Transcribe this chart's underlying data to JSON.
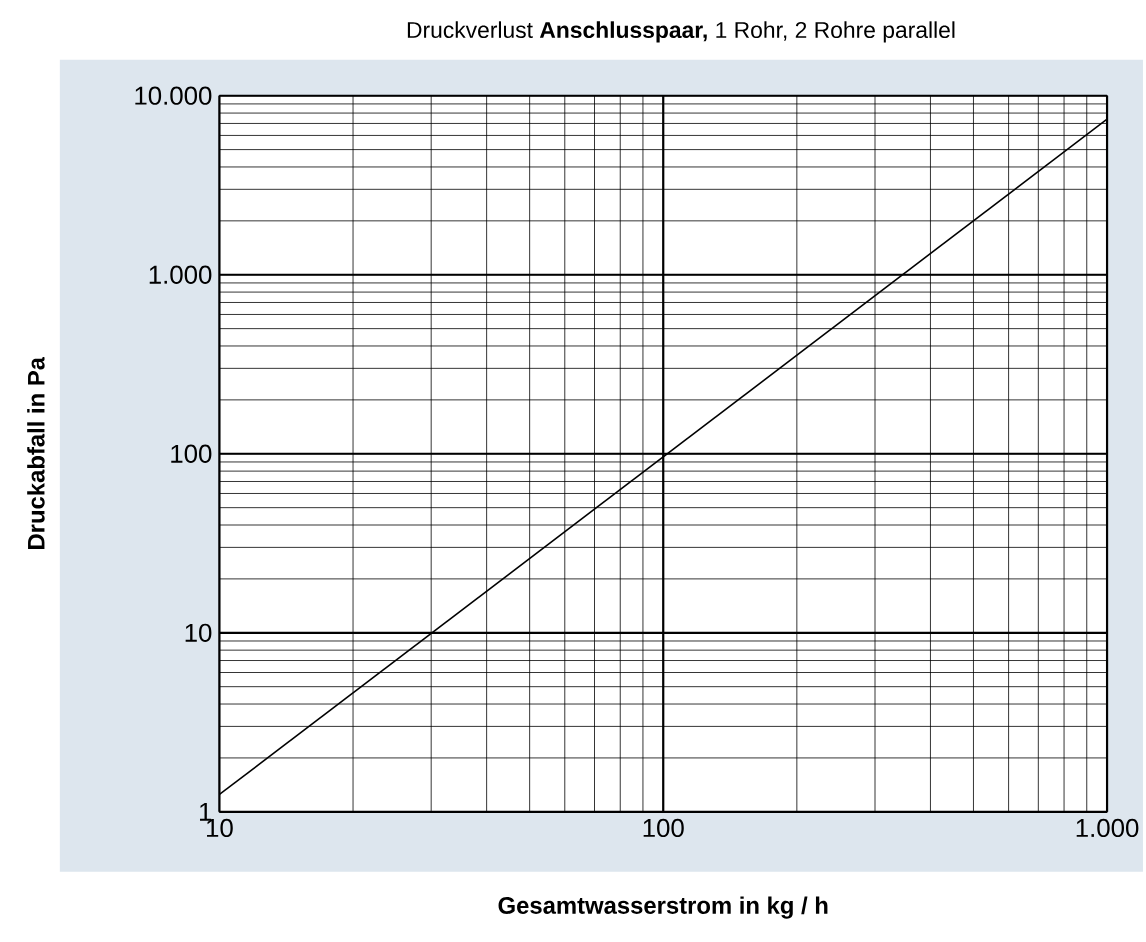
{
  "chart_data": {
    "type": "line",
    "title": "Druckverlust **Anschlusspaar,** 1 Rohr, 2 Rohre parallel",
    "xlabel": "Gesamtwasserstrom in kg / h",
    "ylabel": "Druckabfall in Pa",
    "x": [
      10,
      1000
    ],
    "series": [
      {
        "color": "#000000",
        "values": [
          1.25,
          7400
        ]
      }
    ],
    "xlim": [
      10,
      1000
    ],
    "ylim": [
      1,
      10000
    ],
    "xticks": [
      10,
      100,
      {
        "value": 1000,
        "label": "1.000"
      }
    ],
    "yticks": [
      1,
      10,
      100,
      {
        "value": 1000,
        "label": "1.000"
      },
      {
        "value": 10000,
        "label": "10.000"
      }
    ],
    "log": "xy",
    "grid": true,
    "marker": "none",
    "line_style": "solid"
  }
}
